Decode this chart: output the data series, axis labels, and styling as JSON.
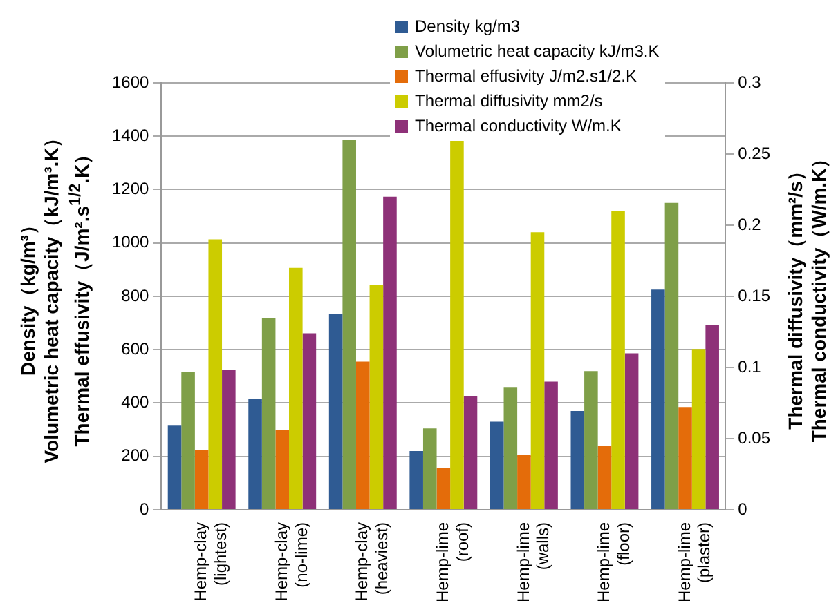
{
  "chart_data": {
    "type": "bar",
    "categories": [
      "Hemp-clay\n(lightest)",
      "Hemp-clay\n(no-lime)",
      "Hemp-clay\n(heaviest)",
      "Hemp-lime\n(roof)",
      "Hemp-lime\n(walls)",
      "Hemp-lime\n(floor)",
      "Hemp-lime\n(plaster)"
    ],
    "series": [
      {
        "name": "Density kg/m3",
        "color": "#2f5b93",
        "values": [
          315,
          415,
          735,
          220,
          330,
          370,
          825
        ]
      },
      {
        "name": "Volumetric heat capacity kJ/m3.K",
        "color": "#7f9f48",
        "values": [
          515,
          720,
          1385,
          305,
          460,
          520,
          1150
        ]
      },
      {
        "name": "Thermal effusivity J/m2.s1/2.K",
        "color": "#e46c0a",
        "values": [
          225,
          300,
          555,
          155,
          205,
          240,
          385
        ]
      },
      {
        "name": "Thermal diffusivity mm2/s",
        "color": "#cccc00",
        "axis": "y2",
        "values": [
          0.19,
          0.17,
          0.158,
          0.26,
          0.195,
          0.21,
          0.113
        ]
      },
      {
        "name": "Thermal conductivity W/m.K",
        "color": "#8e3178",
        "axis": "y2",
        "values": [
          0.098,
          0.124,
          0.22,
          0.08,
          0.09,
          0.11,
          0.13
        ]
      }
    ],
    "ylabel": "Density（kg/m³）\nVolumetric heat capacity（kJ/m³.K）\nThermal effusivity（J/m².s$^{1/2}$.K）",
    "y2label": "Thermal diffusivity（mm²/s）\nThermal conductivity（W/m.K）",
    "ylim": [
      0,
      1600
    ],
    "yticks": [
      0,
      200,
      400,
      600,
      800,
      1000,
      1200,
      1400,
      1600
    ],
    "y2lim": [
      0,
      0.3
    ],
    "y2ticks": [
      0,
      0.05,
      0.1,
      0.15,
      0.2,
      0.25,
      0.3
    ],
    "grid": "y",
    "legend": "top"
  }
}
